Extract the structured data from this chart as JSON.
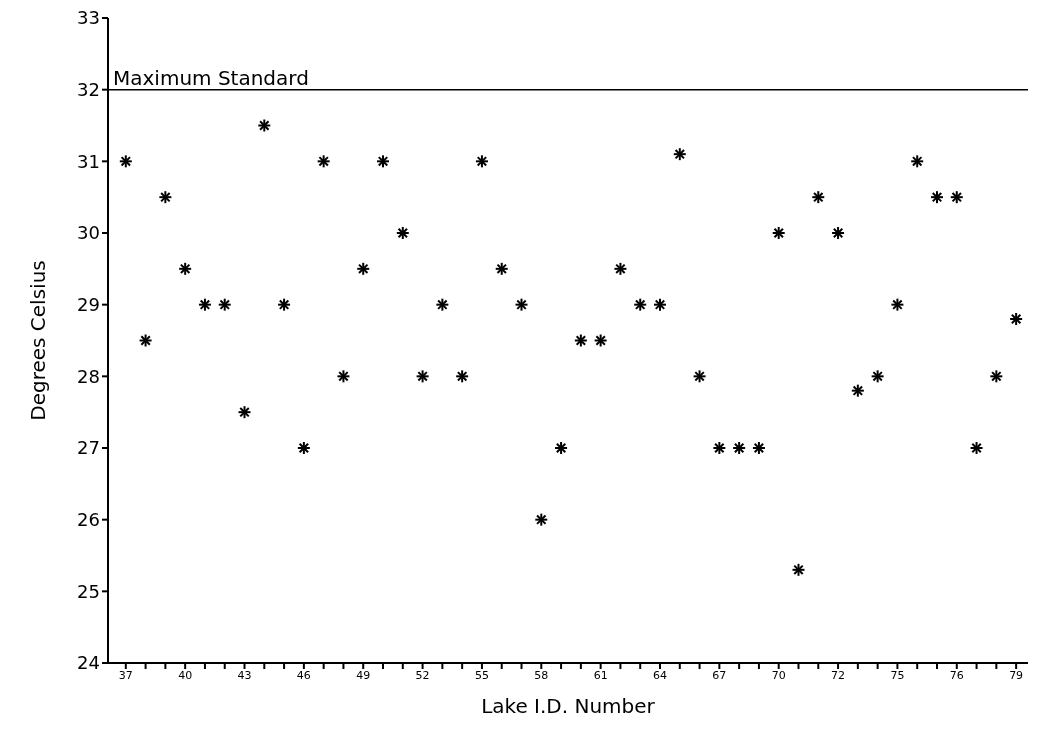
{
  "chart_data": {
    "type": "scatter",
    "xlabel": "Lake I.D. Number",
    "ylabel": "Degrees Celsius",
    "categories": [
      "37",
      null,
      null,
      "40",
      null,
      null,
      "43",
      null,
      null,
      "46",
      null,
      null,
      "49",
      null,
      null,
      "52",
      null,
      null,
      "55",
      null,
      null,
      "58",
      null,
      null,
      "61",
      null,
      null,
      "64",
      null,
      null,
      "67",
      null,
      null,
      "70",
      null,
      null,
      "72",
      null,
      null,
      "75",
      null,
      null,
      "76",
      null,
      null,
      "79"
    ],
    "values": [
      31,
      28.5,
      30.5,
      29.5,
      29,
      29,
      27.5,
      31.5,
      29,
      27,
      31,
      28,
      29.5,
      31,
      30,
      28,
      29,
      28,
      31,
      29.5,
      29,
      26,
      27,
      28.5,
      28.5,
      29.5,
      29,
      29,
      31.1,
      28,
      27,
      27,
      27,
      30,
      25.3,
      30.5,
      30,
      27.8,
      28,
      29,
      31,
      30.5,
      30.5,
      27,
      28,
      28.8
    ],
    "color": "#000000",
    "marker": "cross",
    "ylim": [
      24,
      33
    ],
    "yticks": [
      24,
      25,
      26,
      27,
      28,
      29,
      30,
      31,
      32,
      33
    ],
    "grid": false,
    "legend": false,
    "ref_lines": [
      {
        "axis": "y",
        "value": 32,
        "label": "Maximum Standard",
        "color": "#000000"
      }
    ]
  }
}
